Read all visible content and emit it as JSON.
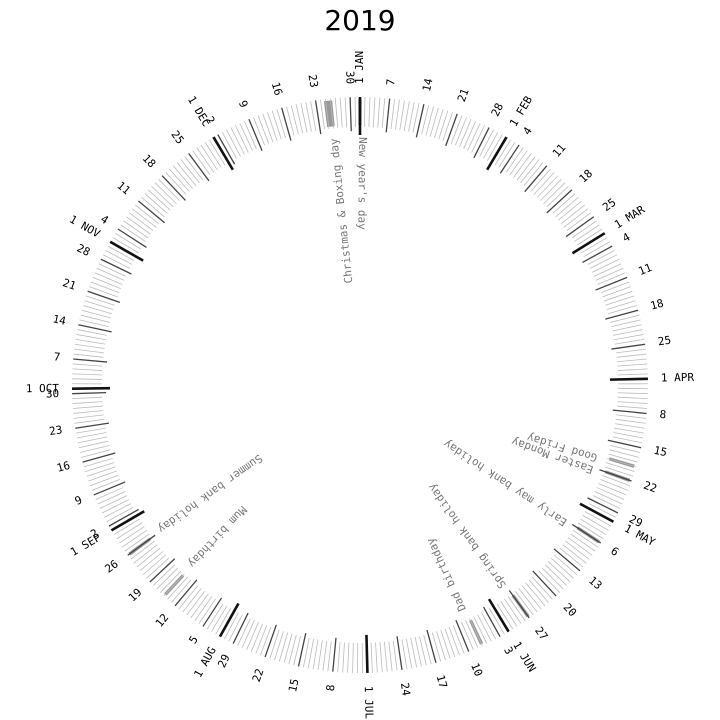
{
  "title": "2019",
  "colors": {
    "tick": "#bbbbbb",
    "week_tick": "#444444",
    "month_tick": "#111111",
    "holiday": "#999999",
    "event_text": "#777777"
  },
  "calendar": {
    "start_date": "2019-01-01",
    "end_date": "2019-12-31",
    "week_start": "Monday",
    "month_labels": [
      "JAN",
      "FEB",
      "MAR",
      "APR",
      "MAY",
      "JUN",
      "JUL",
      "AUG",
      "SEP",
      "OCT",
      "NOV",
      "DEC"
    ]
  },
  "holidays": [
    {
      "label": "New year's day",
      "date": "2019-01-01"
    },
    {
      "label": "Good Friday",
      "date": "2019-04-19"
    },
    {
      "label": "Easter Monday",
      "date": "2019-04-22"
    },
    {
      "label": "Early may bank holiday",
      "date": "2019-05-06"
    },
    {
      "label": "Spring bank holiday",
      "date": "2019-05-27"
    },
    {
      "label": "Dad birthday",
      "date": "2019-06-07"
    },
    {
      "label": "Mum birthday",
      "date": "2019-08-15"
    },
    {
      "label": "Summer bank holiday",
      "date": "2019-08-26"
    },
    {
      "label": "Christmas & Boxing day",
      "date": "2019-12-25",
      "end_date": "2019-12-26"
    }
  ]
}
